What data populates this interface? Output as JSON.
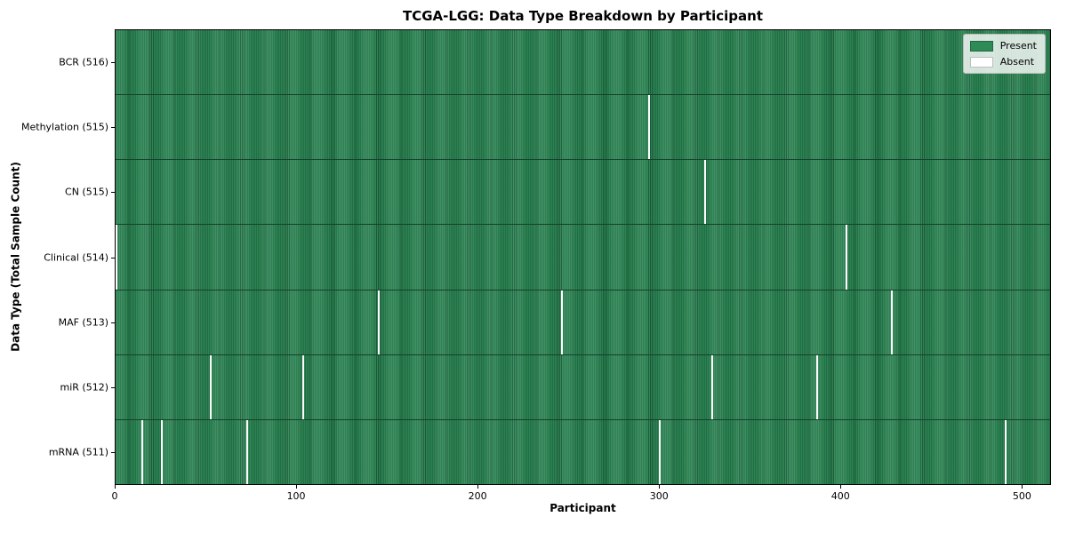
{
  "chart_data": {
    "type": "heatmap",
    "title": "TCGA-LGG: Data Type Breakdown by Participant",
    "xlabel": "Participant",
    "ylabel": "Data Type (Total Sample Count)",
    "total_participants": 516,
    "x_ticks": [
      0,
      100,
      200,
      300,
      400,
      500
    ],
    "x_axis_range": [
      0,
      516
    ],
    "grid": false,
    "rows": [
      {
        "data_type": "BCR",
        "label": "BCR (516)",
        "present_count": 516,
        "absent_participants": []
      },
      {
        "data_type": "Methylation",
        "label": "Methylation (515)",
        "present_count": 515,
        "absent_participants": [
          294
        ]
      },
      {
        "data_type": "CN",
        "label": "CN (515)",
        "present_count": 515,
        "absent_participants": [
          325
        ]
      },
      {
        "data_type": "Clinical",
        "label": "Clinical (514)",
        "present_count": 514,
        "absent_participants": [
          0,
          403
        ]
      },
      {
        "data_type": "MAF",
        "label": "MAF (513)",
        "present_count": 513,
        "absent_participants": [
          145,
          246,
          428
        ]
      },
      {
        "data_type": "miR",
        "label": "miR (512)",
        "present_count": 512,
        "absent_participants": [
          52,
          103,
          329,
          387
        ]
      },
      {
        "data_type": "mRNA",
        "label": "mRNA (511)",
        "present_count": 511,
        "absent_participants": [
          14,
          25,
          72,
          300,
          491
        ]
      }
    ],
    "legend": {
      "position": "upper right",
      "entries": [
        {
          "label": "Present",
          "color": "#2E8B57"
        },
        {
          "label": "Absent",
          "color": "#FFFFFF"
        }
      ]
    },
    "colors": {
      "present": "#2E8B57",
      "present_cell_edge": "#1D5C3A",
      "absent": "#FFFFFF",
      "plot_border": "#000000",
      "background": "#FFFFFF"
    }
  }
}
